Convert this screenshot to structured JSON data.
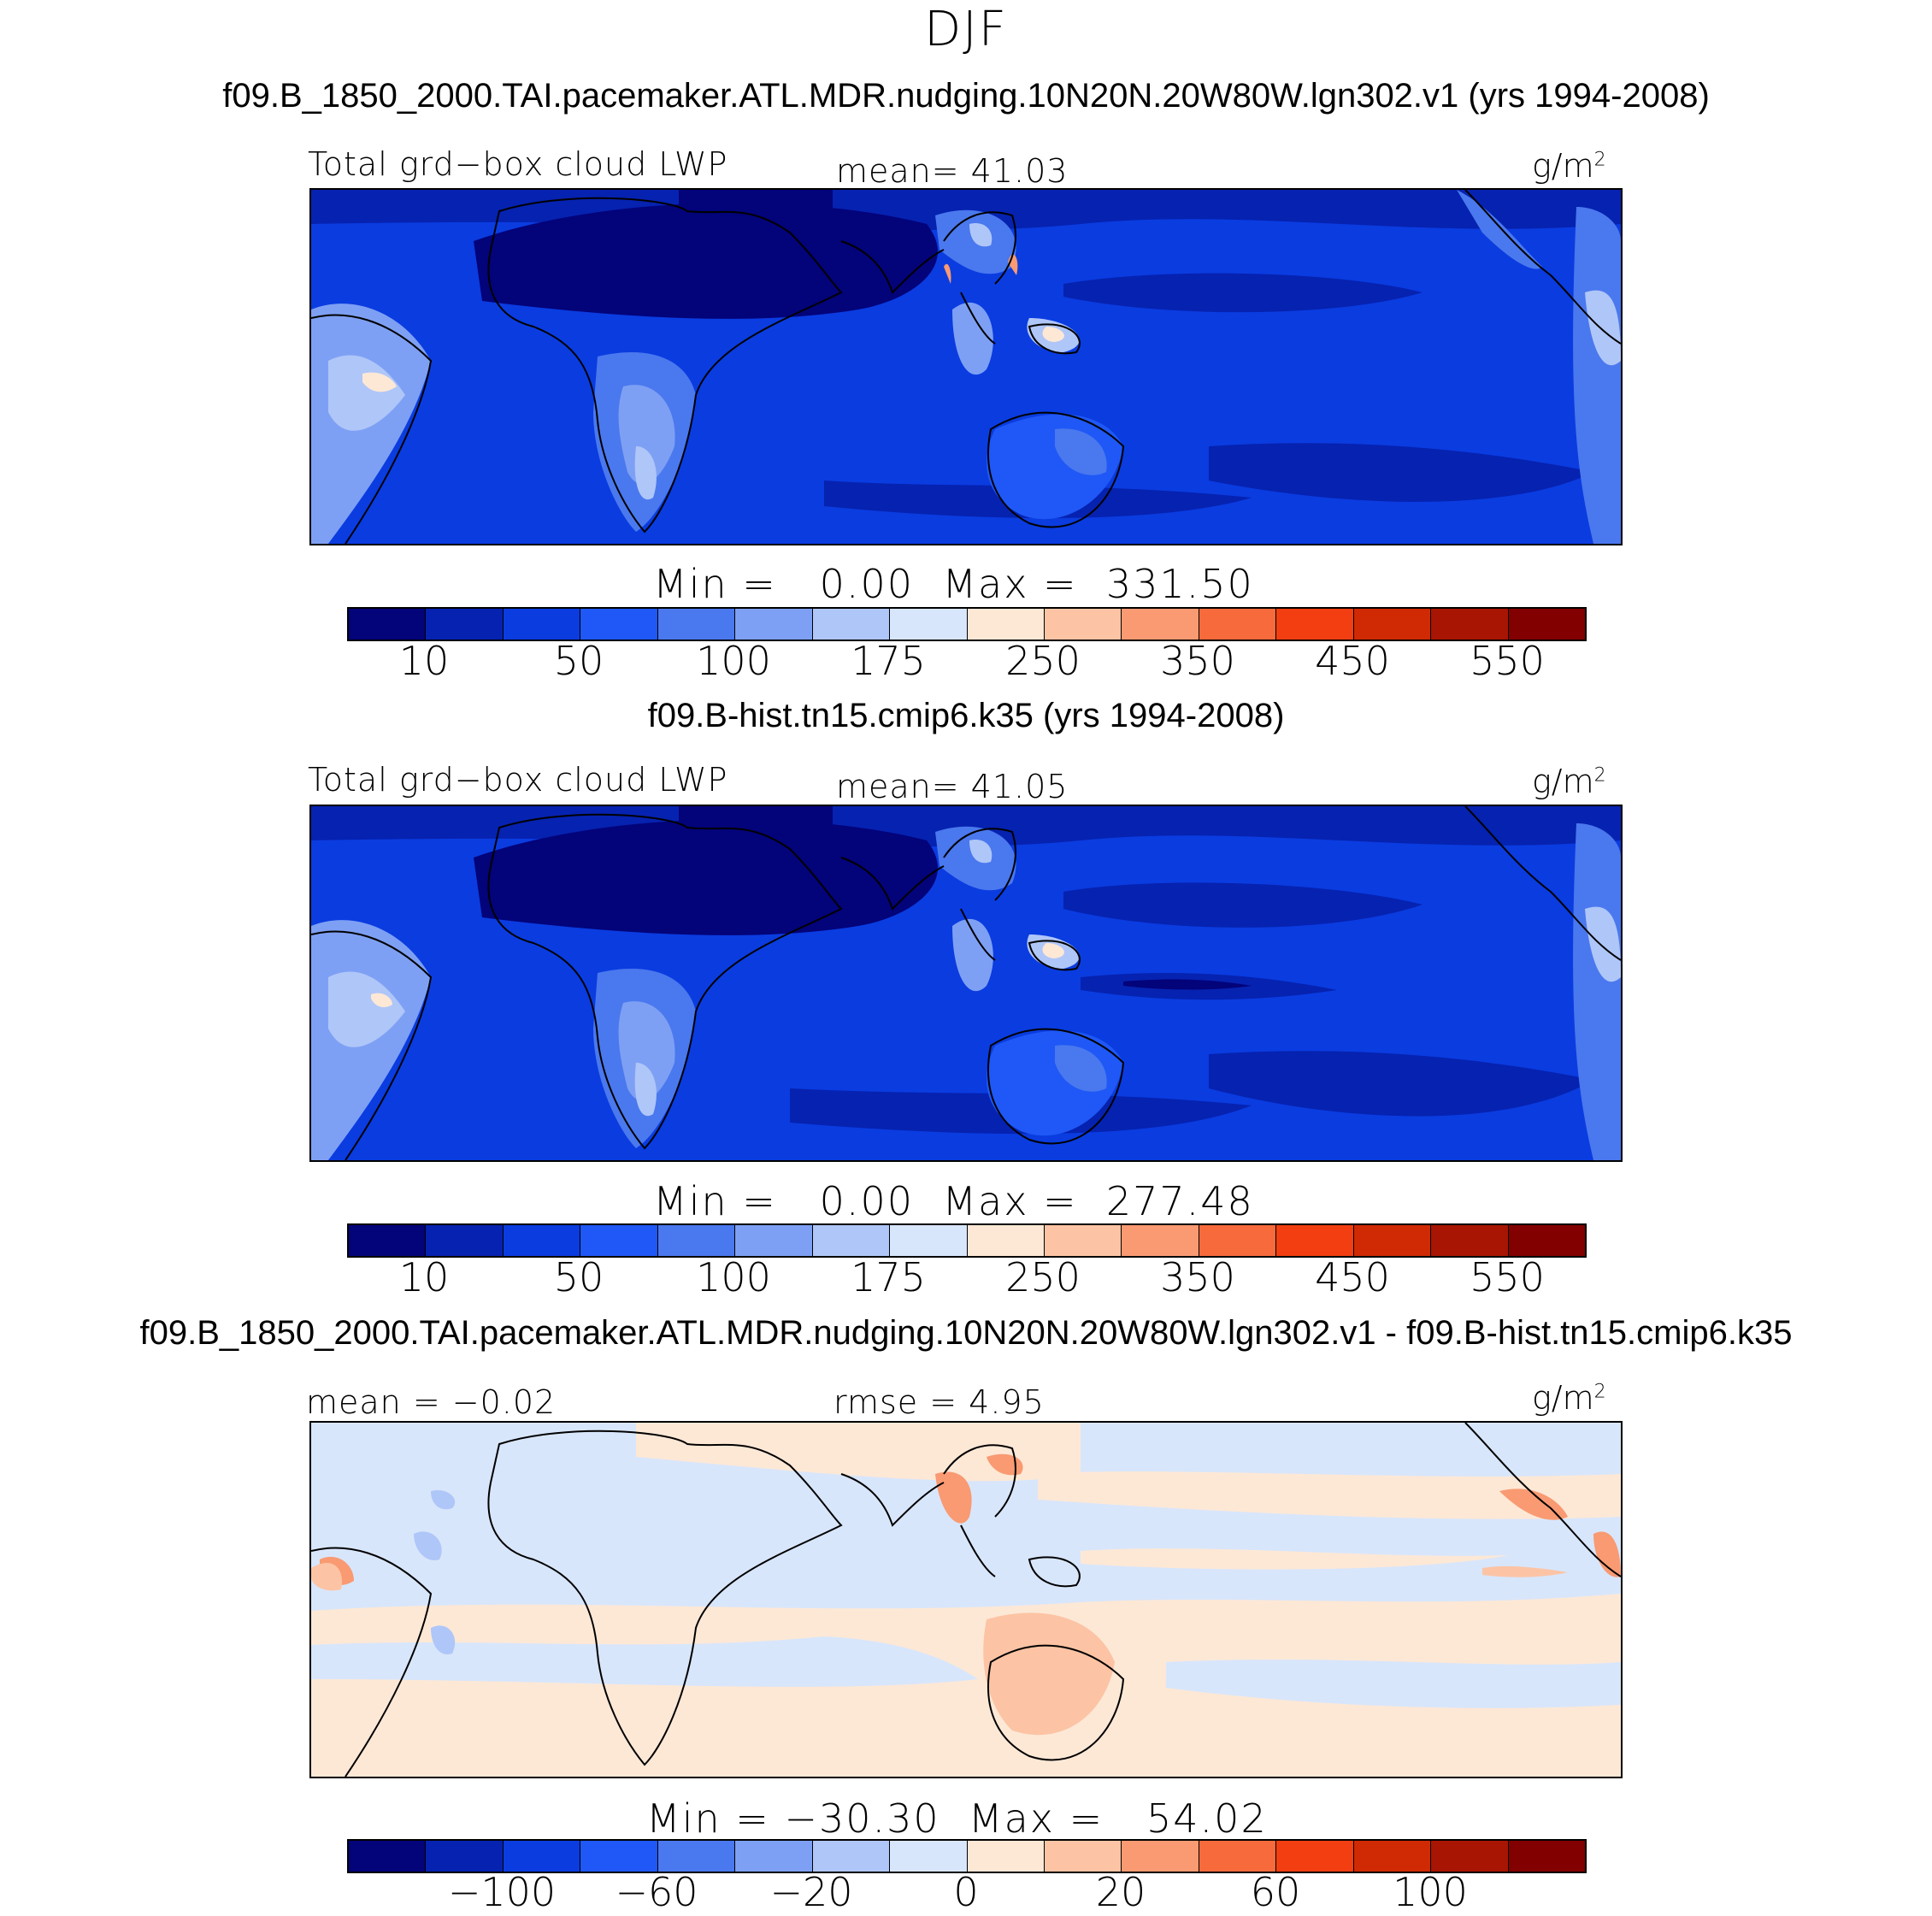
{
  "figure": {
    "season": "DJF",
    "units_label": "g/m",
    "units_exp": "2"
  },
  "panels": [
    {
      "title": "f09.B_1850_2000.TAI.pacemaker.ATL.MDR.nudging.10N20N.20W80W.lgn302.v1 (yrs 1994-2008)",
      "left_label": "Total grd−box cloud LWP",
      "center_label": "mean=  41.03",
      "minmax": "Min =   0.00  Max =  331.50",
      "colorbar_ticks": [
        "10",
        "50",
        "100",
        "175",
        "250",
        "350",
        "450",
        "550"
      ],
      "colorbar_colors": [
        "#03037a",
        "#0622b0",
        "#0a3ce0",
        "#1f58f6",
        "#4a78ee",
        "#7ea0f4",
        "#afc6f8",
        "#d8e6fb",
        "#fde8d6",
        "#fcc4a4",
        "#f99a72",
        "#f76a3c",
        "#f23e10",
        "#cf2a04",
        "#a81502",
        "#830000"
      ]
    },
    {
      "title": "f09.B-hist.tn15.cmip6.k35 (yrs 1994-2008)",
      "left_label": "Total grd−box cloud LWP",
      "center_label": "mean=  41.05",
      "minmax": "Min =   0.00  Max =  277.48",
      "colorbar_ticks": [
        "10",
        "50",
        "100",
        "175",
        "250",
        "350",
        "450",
        "550"
      ],
      "colorbar_colors": [
        "#03037a",
        "#0622b0",
        "#0a3ce0",
        "#1f58f6",
        "#4a78ee",
        "#7ea0f4",
        "#afc6f8",
        "#d8e6fb",
        "#fde8d6",
        "#fcc4a4",
        "#f99a72",
        "#f76a3c",
        "#f23e10",
        "#cf2a04",
        "#a81502",
        "#830000"
      ]
    },
    {
      "title": "f09.B_1850_2000.TAI.pacemaker.ATL.MDR.nudging.10N20N.20W80W.lgn302.v1 - f09.B-hist.tn15.cmip6.k35",
      "left_label": "mean =  −0.02",
      "center_label": "rmse =    4.95",
      "minmax": "Min = −30.30  Max =   54.02",
      "colorbar_ticks": [
        "−100",
        "−60",
        "−20",
        "0",
        "20",
        "60",
        "100"
      ],
      "colorbar_colors": [
        "#03037a",
        "#0622b0",
        "#0a3ce0",
        "#1f58f6",
        "#4a78ee",
        "#7ea0f4",
        "#afc6f8",
        "#d8e6fb",
        "#fde8d6",
        "#fcc4a4",
        "#f99a72",
        "#f76a3c",
        "#f23e10",
        "#cf2a04",
        "#a81502",
        "#830000"
      ]
    }
  ]
}
